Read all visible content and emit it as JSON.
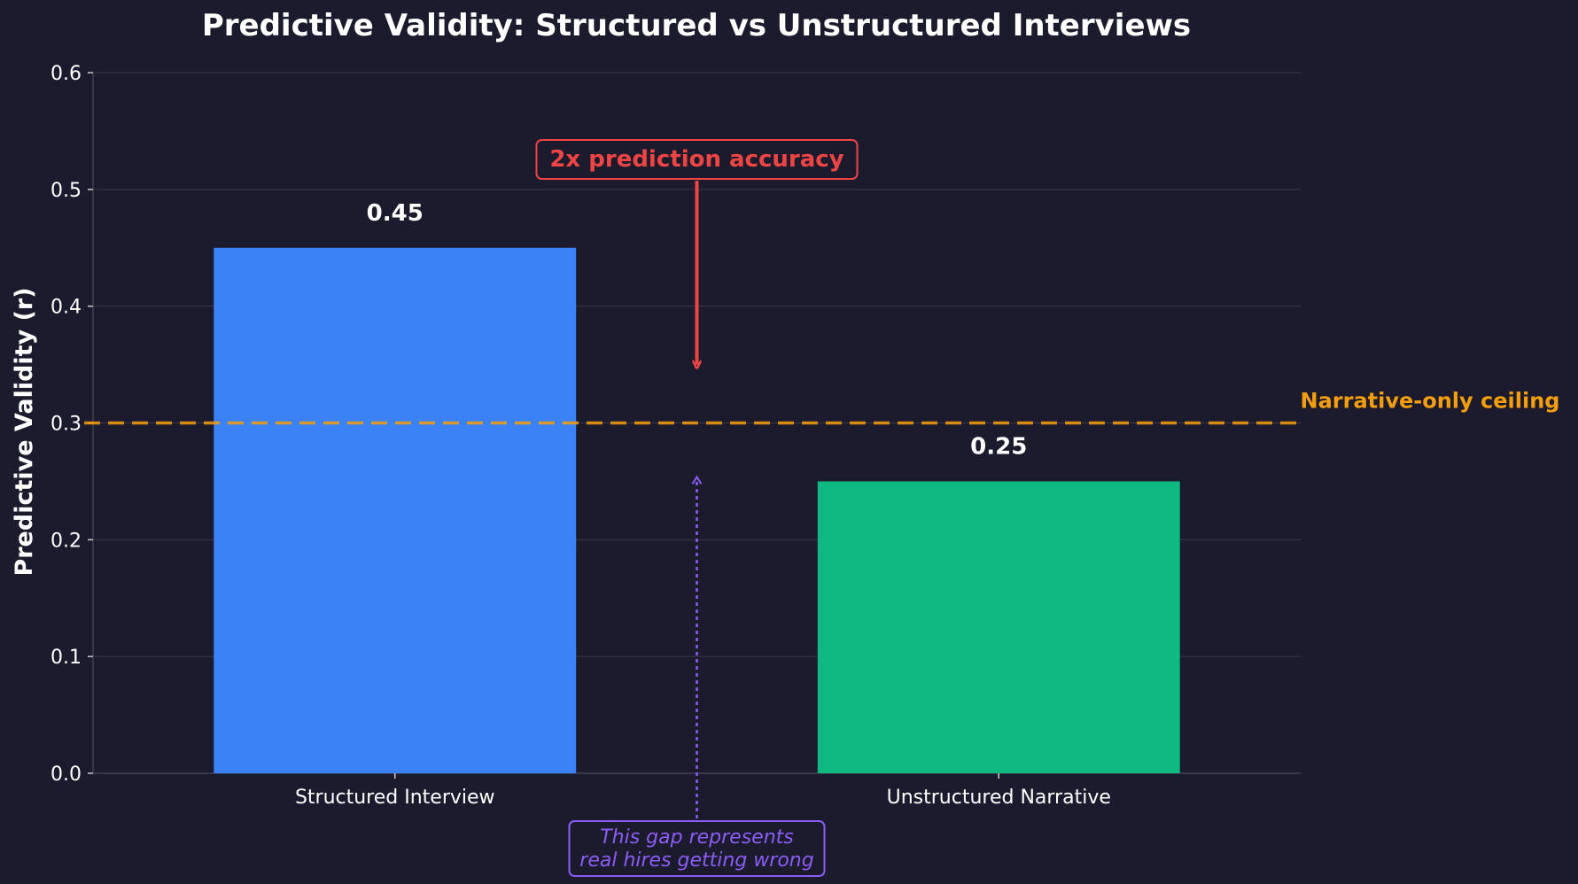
{
  "chart_data": {
    "type": "bar",
    "title": "Predictive Validity: Structured vs Unstructured Interviews",
    "ylabel": "Predictive Validity (r)",
    "xlabel": "",
    "categories": [
      "Structured Interview",
      "Unstructured Narrative"
    ],
    "values": [
      0.45,
      0.25
    ],
    "value_labels": [
      "0.45",
      "0.25"
    ],
    "ylim": [
      0,
      0.6
    ],
    "yticks": [
      0.0,
      0.1,
      0.2,
      0.3,
      0.4,
      0.5,
      0.6
    ],
    "ytick_labels": [
      "0.0",
      "0.1",
      "0.2",
      "0.3",
      "0.4",
      "0.5",
      "0.6"
    ],
    "grid": "horizontal",
    "bar_colors": [
      "#3b82f6",
      "#10b981"
    ],
    "reference_line": {
      "y": 0.3,
      "label": "Narrative-only ceiling",
      "color": "#f59e0b",
      "style": "dashed"
    },
    "annotations": {
      "accuracy": {
        "text": "2x prediction accuracy",
        "color": "#ef4444",
        "arrow_to_y": 0.35
      },
      "gap": {
        "lines": [
          "This gap represents",
          "real hires getting wrong"
        ],
        "color": "#8b5cf6",
        "arrow_to_y": 0.25
      }
    },
    "background": "#1b1b2d",
    "grid_color": "#3a3a4e",
    "text_color": "#ffffff"
  }
}
